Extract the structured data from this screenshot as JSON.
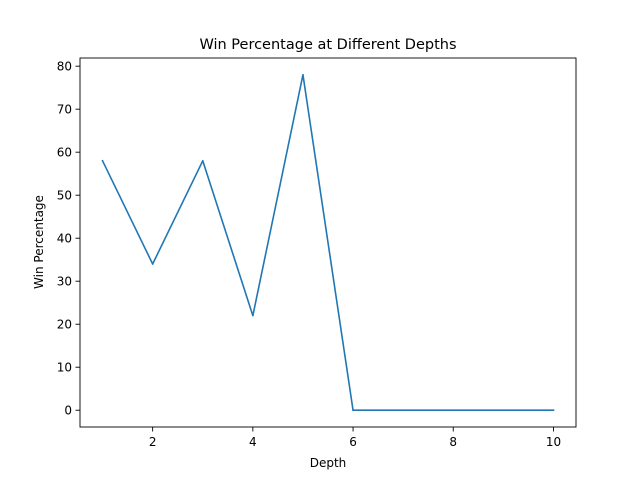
{
  "chart_data": {
    "type": "line",
    "title": "Win Percentage at Different Depths",
    "xlabel": "Depth",
    "ylabel": "Win Percentage",
    "x": [
      1,
      2,
      3,
      4,
      5,
      6,
      7,
      8,
      9,
      10
    ],
    "series": [
      {
        "values": [
          58,
          34,
          58,
          22,
          78,
          0,
          0,
          0,
          0,
          0
        ],
        "color": "#1f77b4"
      }
    ],
    "xlim": [
      0.55,
      10.45
    ],
    "ylim": [
      -3.9,
      81.9
    ],
    "xticks": [
      2,
      4,
      6,
      8,
      10
    ],
    "yticks": [
      0,
      10,
      20,
      30,
      40,
      50,
      60,
      70,
      80
    ],
    "grid": false,
    "legend": "none"
  }
}
